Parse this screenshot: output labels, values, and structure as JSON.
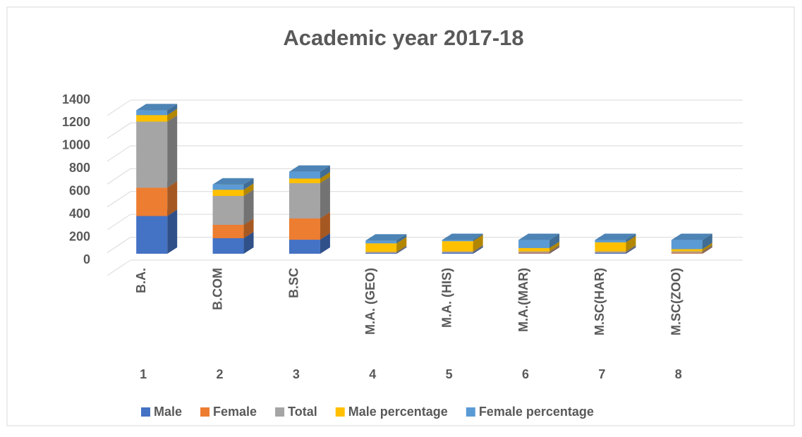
{
  "chart_data": {
    "type": "bar3d_stacked",
    "title": "Academic year 2017-18",
    "categories": [
      "1",
      "2",
      "3",
      "4",
      "5",
      "6",
      "7",
      "8"
    ],
    "category_names": [
      "B.A.",
      "B.COM",
      "B.SC",
      "M.A. (GEO)",
      "M.A. (HIS)",
      "M.A.(MAR)",
      "M.SC(HAR)",
      "M.SC(ZOO)"
    ],
    "series": [
      {
        "name": "Male",
        "color": "#4472c4",
        "values": [
          330,
          136,
          123,
          6,
          9,
          3,
          8,
          2
        ]
      },
      {
        "name": "Female",
        "color": "#ed7d31",
        "values": [
          248,
          117,
          186,
          2,
          1,
          7,
          2,
          8
        ]
      },
      {
        "name": "Total",
        "color": "#a5a5a5",
        "values": [
          578,
          253,
          309,
          8,
          10,
          10,
          10,
          10
        ]
      },
      {
        "name": "Male percentage",
        "color": "#ffc000",
        "values": [
          57,
          54,
          40,
          75,
          90,
          30,
          80,
          20
        ]
      },
      {
        "name": "Female percentage",
        "color": "#5b9bd5",
        "values": [
          43,
          46,
          60,
          25,
          10,
          70,
          20,
          80
        ]
      }
    ],
    "ylim": [
      0,
      1400
    ],
    "yticks": [
      0,
      200,
      400,
      600,
      800,
      1000,
      1200,
      1400
    ],
    "grid": true,
    "legend": "bottom"
  }
}
